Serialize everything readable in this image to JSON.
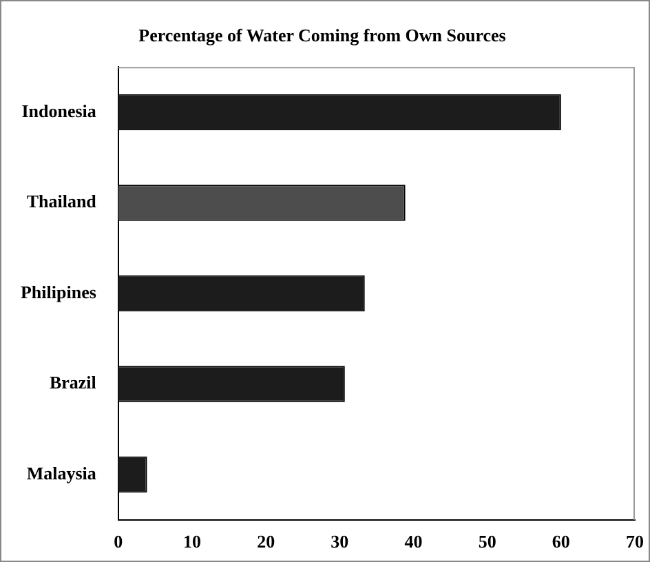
{
  "chart_data": {
    "type": "bar",
    "orientation": "horizontal",
    "title": "Percentage of Water Coming from Own Sources",
    "categories": [
      "Indonesia",
      "Thailand",
      "Philipines",
      "Brazil",
      "Malaysia"
    ],
    "values": [
      60,
      38.9,
      33.4,
      30.7,
      3.9
    ],
    "colors": [
      "#1c1c1c",
      "#4d4d4d",
      "#1c1c1c",
      "#1c1c1c",
      "#1c1c1c"
    ],
    "xlim": [
      0,
      70
    ],
    "xticks": [
      0,
      10,
      20,
      30,
      40,
      50,
      60,
      70
    ],
    "grid": false,
    "legend": false
  }
}
